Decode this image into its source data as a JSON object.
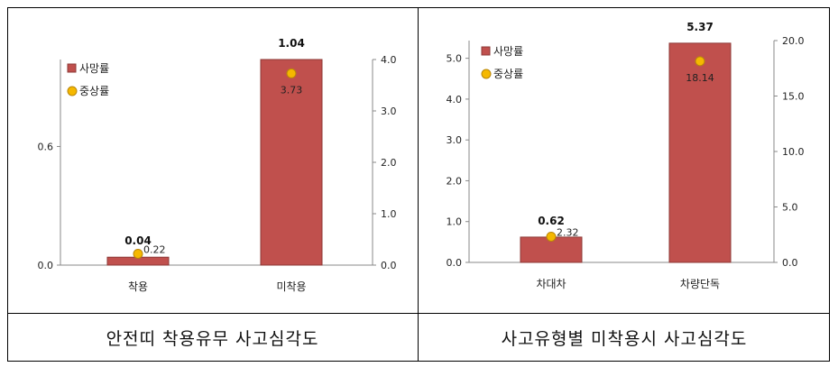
{
  "captions": [
    "안전띠 착용유무 사고심각도",
    "사고유형별 미착용시 사고심각도"
  ],
  "colors": {
    "bar": "#C0504D",
    "bar_stroke": "#8C3836",
    "marker": "#F5B800",
    "marker_stroke": "#B8860B"
  },
  "chart_data": [
    {
      "type": "bar",
      "categories": [
        "착용",
        "미착용"
      ],
      "series": [
        {
          "name": "사망률",
          "axis": "left",
          "kind": "bar",
          "values": [
            0.04,
            1.04
          ],
          "labels": [
            "0.04",
            "1.04"
          ]
        },
        {
          "name": "중상률",
          "axis": "right",
          "kind": "marker",
          "values": [
            0.22,
            3.73
          ],
          "labels": [
            "0.22",
            "3.73"
          ]
        }
      ],
      "left_axis": {
        "ylim": [
          0,
          1.04
        ],
        "ticks": [
          "0.0",
          "0.6"
        ],
        "tick_values": [
          0,
          0.6
        ]
      },
      "right_axis": {
        "ylim": [
          0,
          4.0
        ],
        "ticks": [
          "0.0",
          "1.0",
          "2.0",
          "3.0",
          "4.0"
        ],
        "tick_values": [
          0,
          1,
          2,
          3,
          4
        ]
      },
      "legend": "top-left"
    },
    {
      "type": "bar",
      "categories": [
        "차대차",
        "차량단독"
      ],
      "series": [
        {
          "name": "사망률",
          "axis": "left",
          "kind": "bar",
          "values": [
            0.62,
            5.37
          ],
          "labels": [
            "0.62",
            "5.37"
          ]
        },
        {
          "name": "중상률",
          "axis": "right",
          "kind": "marker",
          "values": [
            2.32,
            18.14
          ],
          "labels": [
            "2.32",
            "18.14"
          ]
        }
      ],
      "left_axis": {
        "ylim": [
          0,
          5.5
        ],
        "ticks": [
          "0.0",
          "1.0",
          "2.0",
          "3.0",
          "4.0",
          "5.0"
        ],
        "tick_values": [
          0,
          1,
          2,
          3,
          4,
          5
        ]
      },
      "right_axis": {
        "ylim": [
          0,
          20
        ],
        "ticks": [
          "0.0",
          "5.0",
          "10.0",
          "15.0",
          "20.0"
        ],
        "tick_values": [
          0,
          5,
          10,
          15,
          20
        ]
      },
      "legend": "top-left"
    }
  ]
}
